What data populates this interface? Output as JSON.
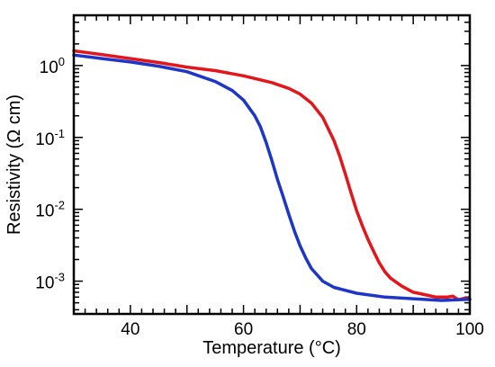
{
  "chart_data": {
    "type": "line",
    "title": "",
    "xlabel": "Temperature (°C)",
    "ylabel": "Resistivity (Ω cm)",
    "xlim": [
      30,
      100
    ],
    "ylim": [
      0.00035,
      5.0
    ],
    "yscale": "log",
    "grid": false,
    "x_ticks": [
      {
        "value": 40,
        "label": "40"
      },
      {
        "value": 60,
        "label": "60"
      },
      {
        "value": 80,
        "label": "80"
      },
      {
        "value": 100,
        "label": "100"
      }
    ],
    "y_ticks": [
      {
        "value": 1,
        "base": "10",
        "exp": "0"
      },
      {
        "value": 0.1,
        "base": "10",
        "exp": "-1"
      },
      {
        "value": 0.01,
        "base": "10",
        "exp": "-2"
      },
      {
        "value": 0.001,
        "base": "10",
        "exp": "-3"
      }
    ],
    "series": [
      {
        "color": "#e3161b",
        "x": [
          30,
          35,
          40,
          45,
          50,
          55,
          60,
          65,
          68,
          70,
          72,
          74,
          76,
          77,
          78,
          79,
          80,
          81,
          82,
          83,
          84,
          85,
          86,
          88,
          90,
          92,
          94,
          96,
          97,
          98,
          99,
          100
        ],
        "y": [
          1.6,
          1.42,
          1.25,
          1.1,
          0.95,
          0.85,
          0.72,
          0.58,
          0.48,
          0.4,
          0.3,
          0.19,
          0.09,
          0.055,
          0.031,
          0.017,
          0.0095,
          0.0059,
          0.0038,
          0.0026,
          0.0018,
          0.00135,
          0.0011,
          0.00085,
          0.0007,
          0.00065,
          0.0006,
          0.0006,
          0.00062,
          0.00055,
          0.00058,
          0.00056
        ]
      },
      {
        "color": "#1e36c8",
        "x": [
          30,
          35,
          40,
          45,
          50,
          55,
          58,
          60,
          62,
          63,
          64,
          65,
          66,
          67,
          68,
          69,
          70,
          71,
          72,
          74,
          76,
          80,
          85,
          90,
          95,
          100
        ],
        "y": [
          1.4,
          1.25,
          1.12,
          0.98,
          0.82,
          0.6,
          0.45,
          0.33,
          0.2,
          0.14,
          0.085,
          0.048,
          0.026,
          0.015,
          0.0085,
          0.005,
          0.0031,
          0.0021,
          0.0015,
          0.001,
          0.00082,
          0.00068,
          0.0006,
          0.00057,
          0.00054,
          0.00056
        ]
      }
    ]
  }
}
